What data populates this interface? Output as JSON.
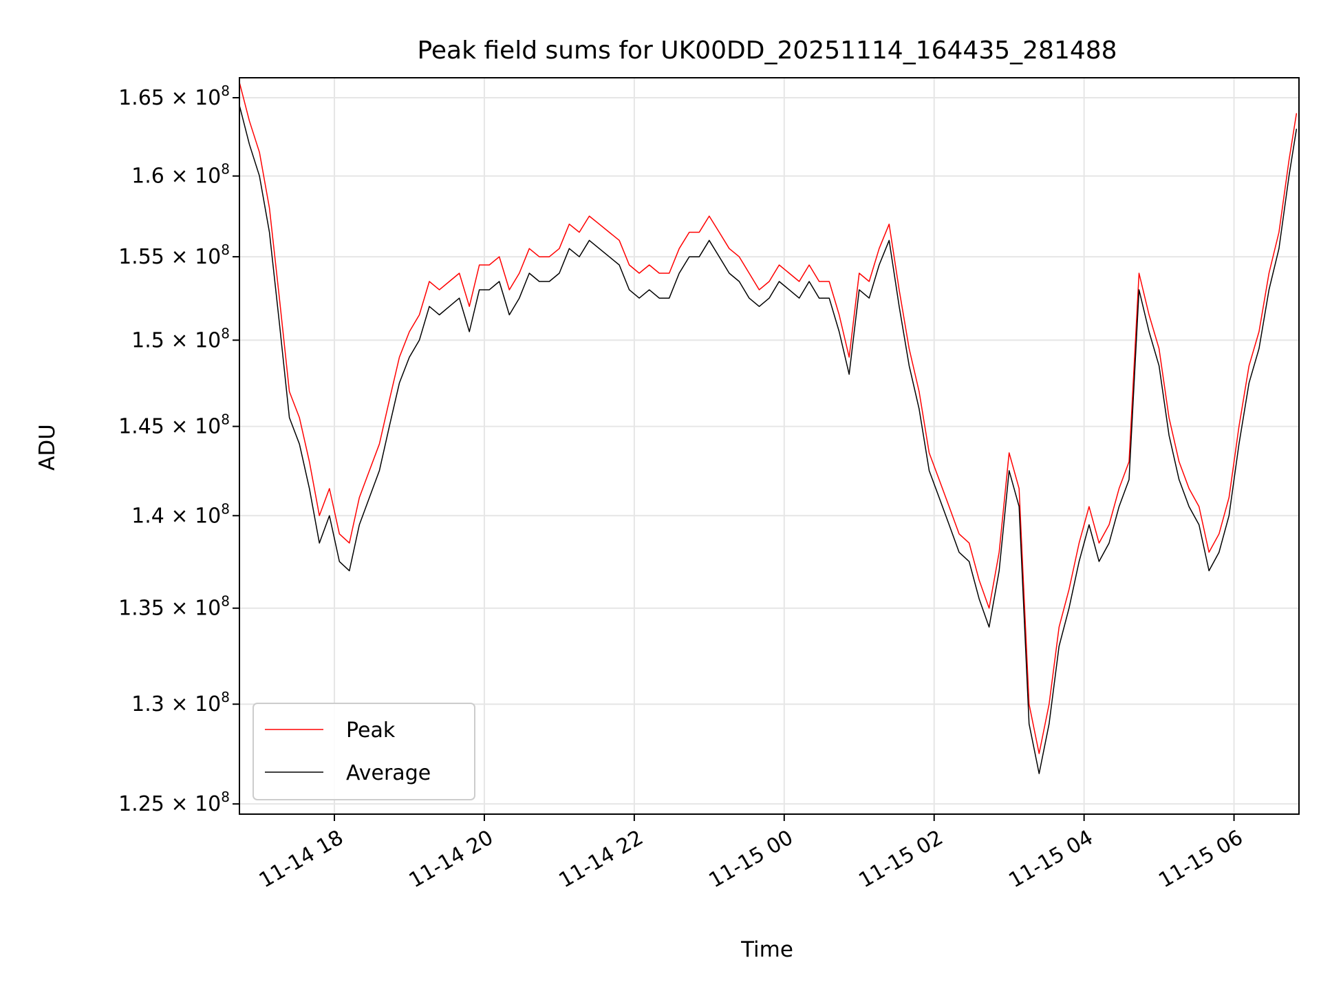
{
  "chart_data": {
    "type": "line",
    "title": "Peak field sums for UK00DD_20251114_164435_281488",
    "xlabel": "Time",
    "ylabel": "ADU",
    "y_scale": "log",
    "x_range": [
      "2025-11-14T16:44",
      "2025-11-15T06:52"
    ],
    "ylim": [
      124500000,
      166300000
    ],
    "grid": true,
    "legend_position": "lower-left",
    "x_ticks": [
      {
        "value": "2025-11-14T18:00",
        "label": "11-14 18"
      },
      {
        "value": "2025-11-14T20:00",
        "label": "11-14 20"
      },
      {
        "value": "2025-11-14T22:00",
        "label": "11-14 22"
      },
      {
        "value": "2025-11-15T00:00",
        "label": "11-15 00"
      },
      {
        "value": "2025-11-15T02:00",
        "label": "11-15 02"
      },
      {
        "value": "2025-11-15T04:00",
        "label": "11-15 04"
      },
      {
        "value": "2025-11-15T06:00",
        "label": "11-15 06"
      }
    ],
    "y_ticks": [
      {
        "value": 125000000,
        "mantissa": "1.25",
        "base": "10",
        "exp": "8"
      },
      {
        "value": 130000000,
        "mantissa": "1.3",
        "base": "10",
        "exp": "8"
      },
      {
        "value": 135000000,
        "mantissa": "1.35",
        "base": "10",
        "exp": "8"
      },
      {
        "value": 140000000,
        "mantissa": "1.4",
        "base": "10",
        "exp": "8"
      },
      {
        "value": 145000000,
        "mantissa": "1.45",
        "base": "10",
        "exp": "8"
      },
      {
        "value": 150000000,
        "mantissa": "1.5",
        "base": "10",
        "exp": "8"
      },
      {
        "value": 155000000,
        "mantissa": "1.55",
        "base": "10",
        "exp": "8"
      },
      {
        "value": 160000000,
        "mantissa": "1.6",
        "base": "10",
        "exp": "8"
      },
      {
        "value": 165000000,
        "mantissa": "1.65",
        "base": "10",
        "exp": "8"
      }
    ],
    "series": [
      {
        "name": "Peak",
        "color": "#ff0000",
        "x": [
          "2025-11-14T16:44",
          "2025-11-14T16:52",
          "2025-11-14T17:00",
          "2025-11-14T17:08",
          "2025-11-14T17:16",
          "2025-11-14T17:24",
          "2025-11-14T17:32",
          "2025-11-14T17:40",
          "2025-11-14T17:48",
          "2025-11-14T17:56",
          "2025-11-14T18:04",
          "2025-11-14T18:12",
          "2025-11-14T18:20",
          "2025-11-14T18:28",
          "2025-11-14T18:36",
          "2025-11-14T18:44",
          "2025-11-14T18:52",
          "2025-11-14T19:00",
          "2025-11-14T19:08",
          "2025-11-14T19:16",
          "2025-11-14T19:24",
          "2025-11-14T19:32",
          "2025-11-14T19:40",
          "2025-11-14T19:48",
          "2025-11-14T19:56",
          "2025-11-14T20:04",
          "2025-11-14T20:12",
          "2025-11-14T20:20",
          "2025-11-14T20:28",
          "2025-11-14T20:36",
          "2025-11-14T20:44",
          "2025-11-14T20:52",
          "2025-11-14T21:00",
          "2025-11-14T21:08",
          "2025-11-14T21:16",
          "2025-11-14T21:24",
          "2025-11-14T21:32",
          "2025-11-14T21:40",
          "2025-11-14T21:48",
          "2025-11-14T21:56",
          "2025-11-14T22:04",
          "2025-11-14T22:12",
          "2025-11-14T22:20",
          "2025-11-14T22:28",
          "2025-11-14T22:36",
          "2025-11-14T22:44",
          "2025-11-14T22:52",
          "2025-11-14T23:00",
          "2025-11-14T23:08",
          "2025-11-14T23:16",
          "2025-11-14T23:24",
          "2025-11-14T23:32",
          "2025-11-14T23:40",
          "2025-11-14T23:48",
          "2025-11-14T23:56",
          "2025-11-15T00:04",
          "2025-11-15T00:12",
          "2025-11-15T00:20",
          "2025-11-15T00:28",
          "2025-11-15T00:36",
          "2025-11-15T00:44",
          "2025-11-15T00:52",
          "2025-11-15T01:00",
          "2025-11-15T01:08",
          "2025-11-15T01:16",
          "2025-11-15T01:24",
          "2025-11-15T01:32",
          "2025-11-15T01:40",
          "2025-11-15T01:48",
          "2025-11-15T01:56",
          "2025-11-15T02:04",
          "2025-11-15T02:12",
          "2025-11-15T02:20",
          "2025-11-15T02:28",
          "2025-11-15T02:36",
          "2025-11-15T02:44",
          "2025-11-15T02:52",
          "2025-11-15T03:00",
          "2025-11-15T03:08",
          "2025-11-15T03:16",
          "2025-11-15T03:24",
          "2025-11-15T03:32",
          "2025-11-15T03:40",
          "2025-11-15T03:48",
          "2025-11-15T03:56",
          "2025-11-15T04:04",
          "2025-11-15T04:12",
          "2025-11-15T04:20",
          "2025-11-15T04:28",
          "2025-11-15T04:36",
          "2025-11-15T04:44",
          "2025-11-15T04:52",
          "2025-11-15T05:00",
          "2025-11-15T05:08",
          "2025-11-15T05:16",
          "2025-11-15T05:24",
          "2025-11-15T05:32",
          "2025-11-15T05:40",
          "2025-11-15T05:48",
          "2025-11-15T05:56",
          "2025-11-15T06:04",
          "2025-11-15T06:12",
          "2025-11-15T06:20",
          "2025-11-15T06:28",
          "2025-11-15T06:36",
          "2025-11-15T06:44",
          "2025-11-15T06:50"
        ],
        "values": [
          166000000,
          163500000,
          161500000,
          158000000,
          152500000,
          147000000,
          145500000,
          143000000,
          140000000,
          141500000,
          139000000,
          138500000,
          141000000,
          142500000,
          144000000,
          146500000,
          149000000,
          150500000,
          151500000,
          153500000,
          153000000,
          153500000,
          154000000,
          152000000,
          154500000,
          154500000,
          155000000,
          153000000,
          154000000,
          155500000,
          155000000,
          155000000,
          155500000,
          157000000,
          156500000,
          157500000,
          157000000,
          156500000,
          156000000,
          154500000,
          154000000,
          154500000,
          154000000,
          154000000,
          155500000,
          156500000,
          156500000,
          157500000,
          156500000,
          155500000,
          155000000,
          154000000,
          153000000,
          153500000,
          154500000,
          154000000,
          153500000,
          154500000,
          153500000,
          153500000,
          151500000,
          149000000,
          154000000,
          153500000,
          155500000,
          157000000,
          153000000,
          149500000,
          147000000,
          143500000,
          142000000,
          140500000,
          139000000,
          138500000,
          136500000,
          135000000,
          138000000,
          143500000,
          141500000,
          130000000,
          127500000,
          130000000,
          134000000,
          136000000,
          138500000,
          140500000,
          138500000,
          139500000,
          141500000,
          143000000,
          154000000,
          151500000,
          149500000,
          145500000,
          143000000,
          141500000,
          140500000,
          138000000,
          139000000,
          141000000,
          145000000,
          148500000,
          150500000,
          154000000,
          156500000,
          161000000,
          164000000
        ]
      },
      {
        "name": "Average",
        "color": "#000000",
        "x": [
          "2025-11-14T16:44",
          "2025-11-14T16:52",
          "2025-11-14T17:00",
          "2025-11-14T17:08",
          "2025-11-14T17:16",
          "2025-11-14T17:24",
          "2025-11-14T17:32",
          "2025-11-14T17:40",
          "2025-11-14T17:48",
          "2025-11-14T17:56",
          "2025-11-14T18:04",
          "2025-11-14T18:12",
          "2025-11-14T18:20",
          "2025-11-14T18:28",
          "2025-11-14T18:36",
          "2025-11-14T18:44",
          "2025-11-14T18:52",
          "2025-11-14T19:00",
          "2025-11-14T19:08",
          "2025-11-14T19:16",
          "2025-11-14T19:24",
          "2025-11-14T19:32",
          "2025-11-14T19:40",
          "2025-11-14T19:48",
          "2025-11-14T19:56",
          "2025-11-14T20:04",
          "2025-11-14T20:12",
          "2025-11-14T20:20",
          "2025-11-14T20:28",
          "2025-11-14T20:36",
          "2025-11-14T20:44",
          "2025-11-14T20:52",
          "2025-11-14T21:00",
          "2025-11-14T21:08",
          "2025-11-14T21:16",
          "2025-11-14T21:24",
          "2025-11-14T21:32",
          "2025-11-14T21:40",
          "2025-11-14T21:48",
          "2025-11-14T21:56",
          "2025-11-14T22:04",
          "2025-11-14T22:12",
          "2025-11-14T22:20",
          "2025-11-14T22:28",
          "2025-11-14T22:36",
          "2025-11-14T22:44",
          "2025-11-14T22:52",
          "2025-11-14T23:00",
          "2025-11-14T23:08",
          "2025-11-14T23:16",
          "2025-11-14T23:24",
          "2025-11-14T23:32",
          "2025-11-14T23:40",
          "2025-11-14T23:48",
          "2025-11-14T23:56",
          "2025-11-15T00:04",
          "2025-11-15T00:12",
          "2025-11-15T00:20",
          "2025-11-15T00:28",
          "2025-11-15T00:36",
          "2025-11-15T00:44",
          "2025-11-15T00:52",
          "2025-11-15T01:00",
          "2025-11-15T01:08",
          "2025-11-15T01:16",
          "2025-11-15T01:24",
          "2025-11-15T01:32",
          "2025-11-15T01:40",
          "2025-11-15T01:48",
          "2025-11-15T01:56",
          "2025-11-15T02:04",
          "2025-11-15T02:12",
          "2025-11-15T02:20",
          "2025-11-15T02:28",
          "2025-11-15T02:36",
          "2025-11-15T02:44",
          "2025-11-15T02:52",
          "2025-11-15T03:00",
          "2025-11-15T03:08",
          "2025-11-15T03:16",
          "2025-11-15T03:24",
          "2025-11-15T03:32",
          "2025-11-15T03:40",
          "2025-11-15T03:48",
          "2025-11-15T03:56",
          "2025-11-15T04:04",
          "2025-11-15T04:12",
          "2025-11-15T04:20",
          "2025-11-15T04:28",
          "2025-11-15T04:36",
          "2025-11-15T04:44",
          "2025-11-15T04:52",
          "2025-11-15T05:00",
          "2025-11-15T05:08",
          "2025-11-15T05:16",
          "2025-11-15T05:24",
          "2025-11-15T05:32",
          "2025-11-15T05:40",
          "2025-11-15T05:48",
          "2025-11-15T05:56",
          "2025-11-15T06:04",
          "2025-11-15T06:12",
          "2025-11-15T06:20",
          "2025-11-15T06:28",
          "2025-11-15T06:36",
          "2025-11-15T06:44",
          "2025-11-15T06:50"
        ],
        "values": [
          164500000,
          162000000,
          160000000,
          156500000,
          151000000,
          145500000,
          144000000,
          141500000,
          138500000,
          140000000,
          137500000,
          137000000,
          139500000,
          141000000,
          142500000,
          145000000,
          147500000,
          149000000,
          150000000,
          152000000,
          151500000,
          152000000,
          152500000,
          150500000,
          153000000,
          153000000,
          153500000,
          151500000,
          152500000,
          154000000,
          153500000,
          153500000,
          154000000,
          155500000,
          155000000,
          156000000,
          155500000,
          155000000,
          154500000,
          153000000,
          152500000,
          153000000,
          152500000,
          152500000,
          154000000,
          155000000,
          155000000,
          156000000,
          155000000,
          154000000,
          153500000,
          152500000,
          152000000,
          152500000,
          153500000,
          153000000,
          152500000,
          153500000,
          152500000,
          152500000,
          150500000,
          148000000,
          153000000,
          152500000,
          154500000,
          156000000,
          152000000,
          148500000,
          146000000,
          142500000,
          141000000,
          139500000,
          138000000,
          137500000,
          135500000,
          134000000,
          137000000,
          142500000,
          140500000,
          129000000,
          126500000,
          129000000,
          133000000,
          135000000,
          137500000,
          139500000,
          137500000,
          138500000,
          140500000,
          142000000,
          153000000,
          150500000,
          148500000,
          144500000,
          142000000,
          140500000,
          139500000,
          137000000,
          138000000,
          140000000,
          144000000,
          147500000,
          149500000,
          153000000,
          155500000,
          160000000,
          163000000
        ]
      }
    ]
  }
}
